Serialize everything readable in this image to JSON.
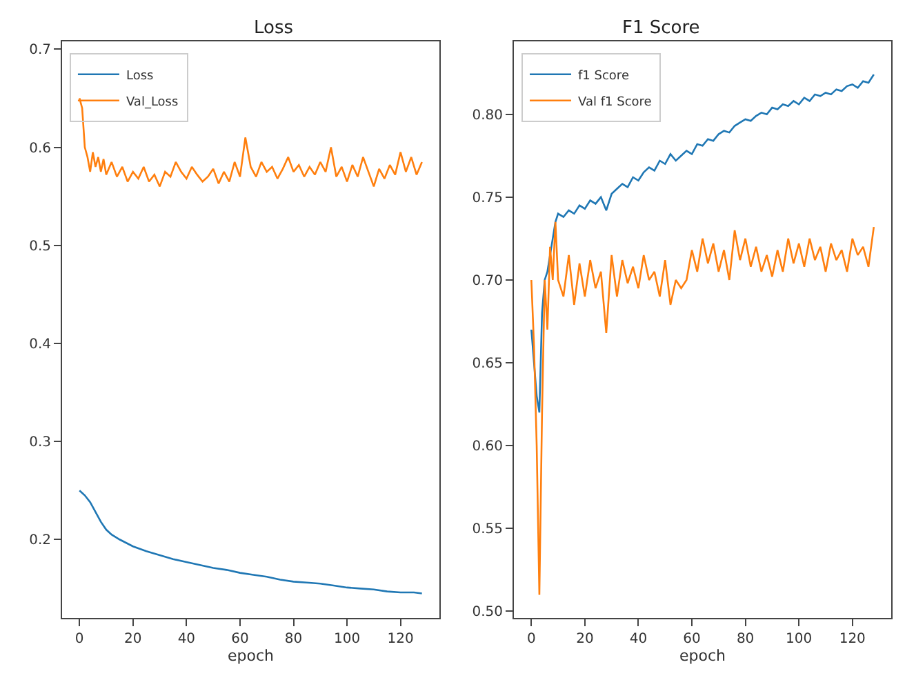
{
  "chart_data": [
    {
      "type": "line",
      "title": "Loss",
      "xlabel": "epoch",
      "xlim": [
        -6.5,
        134.5
      ],
      "xticks": [
        0,
        20,
        40,
        60,
        80,
        100,
        120
      ],
      "ylim": [
        0.12,
        0.708
      ],
      "yticks": [
        0.2,
        0.3,
        0.4,
        0.5,
        0.6,
        0.7
      ],
      "legend": "top left",
      "marker": "none",
      "line_style": "solid",
      "series": [
        {
          "name": "Loss",
          "color": "#1f77b4",
          "x": [
            0,
            2,
            4,
            6,
            8,
            10,
            12,
            15,
            20,
            25,
            30,
            35,
            40,
            45,
            50,
            55,
            60,
            65,
            70,
            75,
            80,
            85,
            90,
            95,
            100,
            105,
            110,
            115,
            120,
            125,
            128
          ],
          "values": [
            0.25,
            0.245,
            0.238,
            0.228,
            0.218,
            0.21,
            0.205,
            0.2,
            0.193,
            0.188,
            0.184,
            0.18,
            0.177,
            0.174,
            0.171,
            0.169,
            0.166,
            0.164,
            0.162,
            0.159,
            0.157,
            0.156,
            0.155,
            0.153,
            0.151,
            0.15,
            0.149,
            0.147,
            0.146,
            0.146,
            0.145
          ]
        },
        {
          "name": "Val_Loss",
          "color": "#ff7f0e",
          "x": [
            0,
            1,
            2,
            3,
            4,
            5,
            6,
            7,
            8,
            9,
            10,
            12,
            14,
            16,
            18,
            20,
            22,
            24,
            26,
            28,
            30,
            32,
            34,
            36,
            38,
            40,
            42,
            44,
            46,
            48,
            50,
            52,
            54,
            56,
            58,
            60,
            62,
            64,
            66,
            68,
            70,
            72,
            74,
            76,
            78,
            80,
            82,
            84,
            86,
            88,
            90,
            92,
            94,
            96,
            98,
            100,
            102,
            104,
            106,
            108,
            110,
            112,
            114,
            116,
            118,
            120,
            122,
            124,
            126,
            128
          ],
          "values": [
            0.65,
            0.64,
            0.6,
            0.59,
            0.575,
            0.595,
            0.58,
            0.59,
            0.575,
            0.588,
            0.572,
            0.585,
            0.57,
            0.58,
            0.565,
            0.575,
            0.568,
            0.58,
            0.565,
            0.572,
            0.56,
            0.575,
            0.57,
            0.585,
            0.575,
            0.568,
            0.58,
            0.572,
            0.565,
            0.57,
            0.578,
            0.563,
            0.575,
            0.565,
            0.585,
            0.57,
            0.61,
            0.58,
            0.57,
            0.585,
            0.575,
            0.58,
            0.568,
            0.578,
            0.59,
            0.575,
            0.582,
            0.57,
            0.58,
            0.572,
            0.585,
            0.575,
            0.6,
            0.57,
            0.58,
            0.565,
            0.582,
            0.57,
            0.59,
            0.575,
            0.56,
            0.578,
            0.568,
            0.582,
            0.572,
            0.595,
            0.575,
            0.59,
            0.572,
            0.585
          ]
        }
      ]
    },
    {
      "type": "line",
      "title": "F1 Score",
      "xlabel": "epoch",
      "xlim": [
        -6.5,
        134.5
      ],
      "xticks": [
        0,
        20,
        40,
        60,
        80,
        100,
        120
      ],
      "ylim": [
        0.496,
        0.844
      ],
      "yticks": [
        {
          "value": 0.5,
          "label": "0.50"
        },
        {
          "value": 0.55,
          "label": "0.55"
        },
        {
          "value": 0.6,
          "label": "0.60"
        },
        {
          "value": 0.65,
          "label": "0.65"
        },
        {
          "value": 0.7,
          "label": "0.70"
        },
        {
          "value": 0.75,
          "label": "0.75"
        },
        {
          "value": 0.8,
          "label": "0.80"
        }
      ],
      "legend": "top left",
      "marker": "none",
      "line_style": "solid",
      "series": [
        {
          "name": "f1 Score",
          "color": "#1f77b4",
          "x": [
            0,
            1,
            2,
            3,
            4,
            5,
            6,
            7,
            8,
            9,
            10,
            12,
            14,
            16,
            18,
            20,
            22,
            24,
            26,
            28,
            30,
            32,
            34,
            36,
            38,
            40,
            42,
            44,
            46,
            48,
            50,
            52,
            54,
            56,
            58,
            60,
            62,
            64,
            66,
            68,
            70,
            72,
            74,
            76,
            78,
            80,
            82,
            84,
            86,
            88,
            90,
            92,
            94,
            96,
            98,
            100,
            102,
            104,
            106,
            108,
            110,
            112,
            114,
            116,
            118,
            120,
            122,
            124,
            126,
            128
          ],
          "values": [
            0.67,
            0.65,
            0.63,
            0.62,
            0.68,
            0.7,
            0.705,
            0.715,
            0.725,
            0.735,
            0.74,
            0.738,
            0.742,
            0.74,
            0.745,
            0.743,
            0.748,
            0.746,
            0.75,
            0.742,
            0.752,
            0.755,
            0.758,
            0.756,
            0.762,
            0.76,
            0.765,
            0.768,
            0.766,
            0.772,
            0.77,
            0.776,
            0.772,
            0.775,
            0.778,
            0.776,
            0.782,
            0.781,
            0.785,
            0.784,
            0.788,
            0.79,
            0.789,
            0.793,
            0.795,
            0.797,
            0.796,
            0.799,
            0.801,
            0.8,
            0.804,
            0.803,
            0.806,
            0.805,
            0.808,
            0.806,
            0.81,
            0.808,
            0.812,
            0.811,
            0.813,
            0.812,
            0.815,
            0.814,
            0.817,
            0.818,
            0.816,
            0.82,
            0.819,
            0.824
          ]
        },
        {
          "name": "Val f1 Score",
          "color": "#ff7f0e",
          "x": [
            0,
            1,
            2,
            3,
            4,
            5,
            6,
            7,
            8,
            9,
            10,
            12,
            14,
            16,
            18,
            20,
            22,
            24,
            26,
            28,
            30,
            32,
            34,
            36,
            38,
            40,
            42,
            44,
            46,
            48,
            50,
            52,
            54,
            56,
            58,
            60,
            62,
            64,
            66,
            68,
            70,
            72,
            74,
            76,
            78,
            80,
            82,
            84,
            86,
            88,
            90,
            92,
            94,
            96,
            98,
            100,
            102,
            104,
            106,
            108,
            110,
            112,
            114,
            116,
            118,
            120,
            122,
            124,
            126,
            128
          ],
          "values": [
            0.7,
            0.66,
            0.6,
            0.51,
            0.62,
            0.7,
            0.67,
            0.72,
            0.7,
            0.735,
            0.7,
            0.69,
            0.715,
            0.685,
            0.71,
            0.69,
            0.712,
            0.695,
            0.705,
            0.668,
            0.715,
            0.69,
            0.712,
            0.698,
            0.708,
            0.695,
            0.715,
            0.7,
            0.705,
            0.69,
            0.712,
            0.685,
            0.7,
            0.695,
            0.7,
            0.718,
            0.705,
            0.725,
            0.71,
            0.722,
            0.705,
            0.718,
            0.7,
            0.73,
            0.712,
            0.725,
            0.708,
            0.72,
            0.705,
            0.715,
            0.702,
            0.718,
            0.705,
            0.725,
            0.71,
            0.722,
            0.708,
            0.725,
            0.712,
            0.72,
            0.705,
            0.722,
            0.712,
            0.718,
            0.705,
            0.725,
            0.715,
            0.72,
            0.708,
            0.732
          ]
        }
      ]
    }
  ]
}
